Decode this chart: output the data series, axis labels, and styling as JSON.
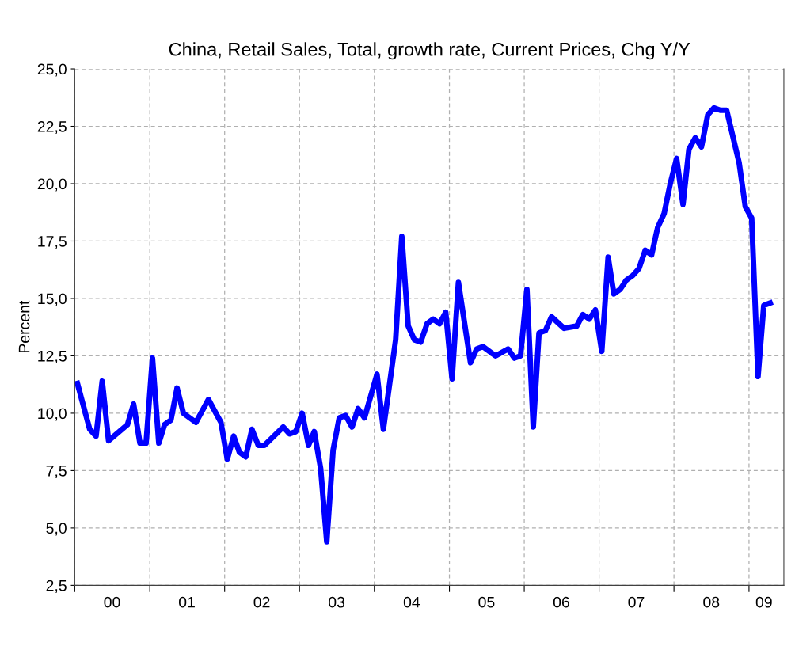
{
  "chart_data": {
    "type": "line",
    "title": "China, Retail Sales, Total, growth rate, Current Prices, Chg Y/Y",
    "ylabel": "Percent",
    "x": [
      "2000-01",
      "2000-03",
      "2000-04",
      "2000-05",
      "2000-06",
      "2000-09",
      "2000-10",
      "2000-11",
      "2000-12",
      "2001-01",
      "2001-02",
      "2001-03",
      "2001-04",
      "2001-05",
      "2001-06",
      "2001-08",
      "2001-10",
      "2001-12",
      "2002-01",
      "2002-02",
      "2002-03",
      "2002-04",
      "2002-05",
      "2002-06",
      "2002-07",
      "2002-10",
      "2002-11",
      "2002-12",
      "2003-01",
      "2003-02",
      "2003-03",
      "2003-04",
      "2003-05",
      "2003-06",
      "2003-07",
      "2003-08",
      "2003-09",
      "2003-10",
      "2003-11",
      "2004-01",
      "2004-02",
      "2004-04",
      "2004-05",
      "2004-06",
      "2004-07",
      "2004-08",
      "2004-09",
      "2004-10",
      "2004-11",
      "2004-12",
      "2005-01",
      "2005-02",
      "2005-04",
      "2005-05",
      "2005-06",
      "2005-08",
      "2005-10",
      "2005-11",
      "2005-12",
      "2006-01",
      "2006-02",
      "2006-03",
      "2006-04",
      "2006-05",
      "2006-07",
      "2006-09",
      "2006-10",
      "2006-11",
      "2006-12",
      "2007-01",
      "2007-02",
      "2007-03",
      "2007-04",
      "2007-05",
      "2007-06",
      "2007-07",
      "2007-08",
      "2007-09",
      "2007-10",
      "2007-11",
      "2007-12",
      "2008-01",
      "2008-02",
      "2008-03",
      "2008-04",
      "2008-05",
      "2008-06",
      "2008-07",
      "2008-08",
      "2008-09",
      "2008-11",
      "2008-12",
      "2009-01",
      "2009-02",
      "2009-03",
      "2009-04"
    ],
    "series": [
      {
        "color": "#0000ff",
        "values": [
          11.3,
          9.3,
          9.0,
          11.4,
          8.8,
          9.5,
          10.4,
          8.7,
          8.7,
          12.4,
          8.7,
          9.5,
          9.7,
          11.1,
          10.0,
          9.6,
          10.6,
          9.6,
          8.0,
          9.0,
          8.3,
          8.1,
          9.3,
          8.6,
          8.6,
          9.4,
          9.1,
          9.2,
          10.0,
          8.6,
          9.2,
          7.6,
          4.4,
          8.4,
          9.8,
          9.9,
          9.4,
          10.2,
          9.8,
          11.7,
          9.3,
          13.2,
          17.7,
          13.8,
          13.2,
          13.1,
          13.9,
          14.1,
          13.9,
          14.4,
          11.5,
          15.7,
          12.2,
          12.8,
          12.9,
          12.5,
          12.8,
          12.4,
          12.5,
          15.4,
          9.4,
          13.5,
          13.6,
          14.2,
          13.7,
          13.8,
          14.3,
          14.1,
          14.5,
          12.7,
          16.8,
          15.2,
          15.4,
          15.8,
          16.0,
          16.3,
          17.1,
          16.9,
          18.1,
          18.7,
          20.0,
          21.1,
          19.1,
          21.5,
          22.0,
          21.6,
          23.0,
          23.3,
          23.2,
          23.2,
          20.9,
          19.0,
          18.5,
          11.6,
          14.7,
          14.8
        ]
      }
    ],
    "xlim": [
      "2000-01-01",
      "2009-06-20"
    ],
    "xticks": [
      {
        "value": "2000-01-01",
        "label": null
      },
      {
        "value": "2000-07-01",
        "label": "00"
      },
      {
        "value": "2001-01-01",
        "label": null
      },
      {
        "value": "2001-07-01",
        "label": "01"
      },
      {
        "value": "2002-01-01",
        "label": null
      },
      {
        "value": "2002-07-01",
        "label": "02"
      },
      {
        "value": "2003-01-01",
        "label": null
      },
      {
        "value": "2003-07-01",
        "label": "03"
      },
      {
        "value": "2004-01-01",
        "label": null
      },
      {
        "value": "2004-07-01",
        "label": "04"
      },
      {
        "value": "2005-01-01",
        "label": null
      },
      {
        "value": "2005-07-01",
        "label": "05"
      },
      {
        "value": "2006-01-01",
        "label": null
      },
      {
        "value": "2006-07-01",
        "label": "06"
      },
      {
        "value": "2007-01-01",
        "label": null
      },
      {
        "value": "2007-07-01",
        "label": "07"
      },
      {
        "value": "2008-01-01",
        "label": null
      },
      {
        "value": "2008-07-01",
        "label": "08"
      },
      {
        "value": "2009-01-01",
        "label": null
      },
      {
        "value": "2009-03-15",
        "label": "09"
      }
    ],
    "ylim": [
      2.5,
      25
    ],
    "yticks": [
      {
        "value": 2.5,
        "label": "2,5"
      },
      {
        "value": 5,
        "label": "5,0"
      },
      {
        "value": 7.5,
        "label": "7,5"
      },
      {
        "value": 10,
        "label": "10,0"
      },
      {
        "value": 12.5,
        "label": "12,5"
      },
      {
        "value": 15,
        "label": "15,0"
      },
      {
        "value": 17.5,
        "label": "17,5"
      },
      {
        "value": 20,
        "label": "20,0"
      },
      {
        "value": 22.5,
        "label": "22,5"
      },
      {
        "value": 25,
        "label": "25,0"
      }
    ],
    "grid": true,
    "line_style": "solid",
    "marker": "none",
    "legend": false
  }
}
